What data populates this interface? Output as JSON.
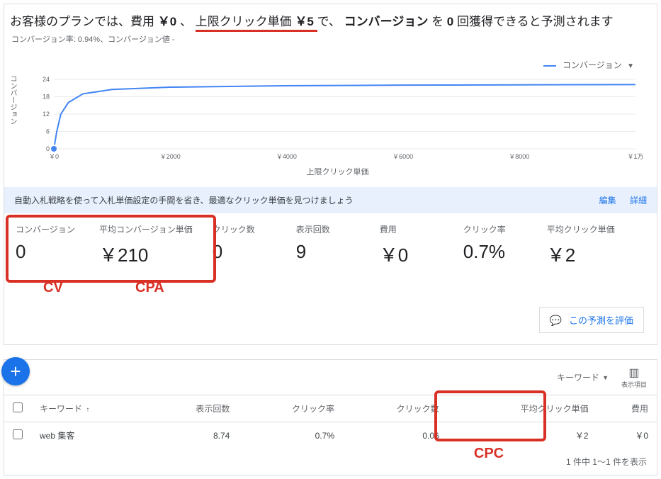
{
  "headline": {
    "prefix": "お客様のプランでは、費用 ",
    "cost": "￥0",
    "mid1": "、",
    "cpc_label": "上限クリック単価 ",
    "cpc_value": "￥5",
    "mid2": " で、 ",
    "conv_word": "コンバージョン",
    "mid3": " を ",
    "conv_count": "0",
    "suffix": " 回獲得できると予測されます"
  },
  "subline": "コンバージョン率: 0.94%、コンバージョン値 -",
  "chart": {
    "legend_label": "コンバージョン",
    "ylabel": "コンバージョン",
    "xlabel": "上限クリック単価",
    "yticks": [
      24,
      18,
      12,
      6,
      0
    ],
    "xticks": [
      "￥0",
      "￥2000",
      "￥4000",
      "￥6000",
      "￥8000",
      "￥1万"
    ],
    "line_color": "#4285f4",
    "grid_color": "#e8eaed",
    "marker_x": 0,
    "ylim": [
      0,
      24
    ],
    "series": [
      {
        "x": 0,
        "y": 0
      },
      {
        "x": 50,
        "y": 6
      },
      {
        "x": 120,
        "y": 12
      },
      {
        "x": 250,
        "y": 16
      },
      {
        "x": 500,
        "y": 19
      },
      {
        "x": 1000,
        "y": 20.5
      },
      {
        "x": 2000,
        "y": 21.3
      },
      {
        "x": 4000,
        "y": 21.8
      },
      {
        "x": 6000,
        "y": 22
      },
      {
        "x": 8000,
        "y": 22.1
      },
      {
        "x": 10000,
        "y": 22.2
      }
    ]
  },
  "banner": {
    "text": "自動入札戦略を使って入札単価設定の手間を省き、最適なクリック単価を見つけましょう",
    "edit": "編集",
    "details": "詳細"
  },
  "metrics": [
    {
      "label": "コンバージョン",
      "value": "0"
    },
    {
      "label": "平均コンバージョン単価",
      "value": "￥210"
    },
    {
      "label": "クリック数",
      "value": "0"
    },
    {
      "label": "表示回数",
      "value": "9"
    },
    {
      "label": "費用",
      "value": "￥0"
    },
    {
      "label": "クリック率",
      "value": "0.7%"
    },
    {
      "label": "平均クリック単価",
      "value": "￥2"
    }
  ],
  "annotations": {
    "cv": "CV",
    "cpa": "CPA",
    "cpc": "CPC"
  },
  "eval_button": "この予測を評価",
  "table": {
    "top_keyword": "キーワード",
    "top_columns_label": "表示項目",
    "headers": [
      "",
      "キーワード",
      "表示回数",
      "クリック率",
      "クリック数",
      "平均クリック単価",
      "費用"
    ],
    "rows": [
      {
        "kw": "web 集客",
        "impr": "8.74",
        "ctr": "0.7%",
        "clicks": "0.06",
        "cpc": "￥2",
        "cost": "￥0"
      }
    ],
    "footer": "1 件中 1～1 件を表示"
  },
  "colors": {
    "red": "#d93025",
    "blue": "#1a73e8",
    "line": "#4285f4",
    "border": "#dadce0",
    "text_muted": "#5f6368"
  }
}
